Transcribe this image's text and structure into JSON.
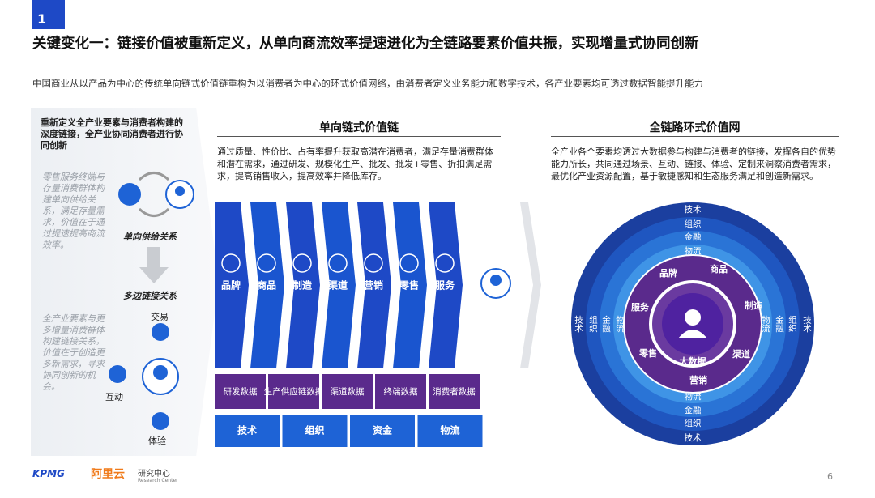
{
  "badge": "1",
  "header": {
    "title": "关键变化一：链接价值被重新定义，从单向商流效率提速进化为全链路要素价值共振，实现增量式协同创新",
    "subtitle": "中国商业从以产品为中心的传统单向链式价值链重构为以消费者为中心的环式价值网络，由消费者定义业务能力和数字技术，各产业要素均可透过数据智能提升能力"
  },
  "left_panel": {
    "heading": "重新定义全产业要素与消费者构建的深度链接，全产业协同消费者进行协同创新",
    "text_1": "零售服务终端与存量消费群体构建单向供给关系，满足存量需求，价值在于通过提速提高商流效率。",
    "label_single": "单向供给关系",
    "label_multi": "多边链接关系",
    "text_2": "全产业要素与更多增量消费群体构建链接关系，价值在于创造更多新需求，寻求协同创新的机会。",
    "nodes": [
      "交易",
      "互动",
      "体验"
    ]
  },
  "chain": {
    "heading": "单向链式价值链",
    "description": "通过质量、性价比、占有率提升获取高潜在消费者，满足存量消费群体和潜在需求，通过研发、规模化生产、批发、批发+零售、折扣满足需求，提高销售收入，提高效率并降低库存。",
    "stages": [
      "品牌",
      "商品",
      "制造",
      "渠道",
      "营销",
      "零售",
      "服务"
    ],
    "data_boxes": [
      "研发数据",
      "生产供应链数据",
      "渠道数据",
      "终端数据",
      "消费者数据"
    ],
    "foundations": [
      "技术",
      "组织",
      "资金",
      "物流"
    ]
  },
  "network": {
    "heading": "全链路环式价值网",
    "description": "全产业各个要素均透过大数据参与构建与消费者的链接，发挥各自的优势能力所长，共同通过场景、互动、链接、体验、定制来洞察消费者需求，最优化产业资源配置，基于敏捷感知和生态服务满足和创造新需求。",
    "center": "大数据",
    "inner_ring": [
      "品牌",
      "商品",
      "制造",
      "渠道",
      "营销",
      "零售",
      "服务"
    ],
    "outer_rings": [
      "技术",
      "组织",
      "金融",
      "物流"
    ]
  },
  "footer": {
    "logo_kpmg": "KPMG",
    "logo_ali": "阿里云",
    "logo_center": "研究中心",
    "logo_center_en": "Research Center",
    "page": "6"
  }
}
